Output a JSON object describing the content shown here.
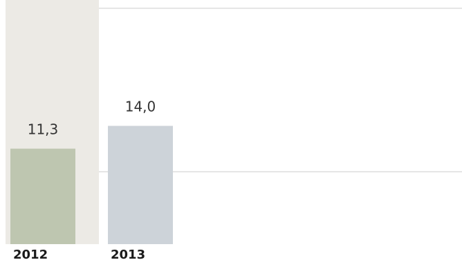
{
  "chart_data": {
    "type": "bar",
    "categories": [
      "2012",
      "2013"
    ],
    "values": [
      11.3,
      14.0
    ],
    "value_labels": [
      "11,3",
      "14,0"
    ],
    "highlighted_category": "2012",
    "colors": {
      "bars": [
        "#bec6b0",
        "#cdd3d9"
      ],
      "highlight_band": "#eceae5",
      "gridline": "#e6e6e6"
    },
    "grid": true,
    "title": "",
    "xlabel": "",
    "ylabel": ""
  }
}
